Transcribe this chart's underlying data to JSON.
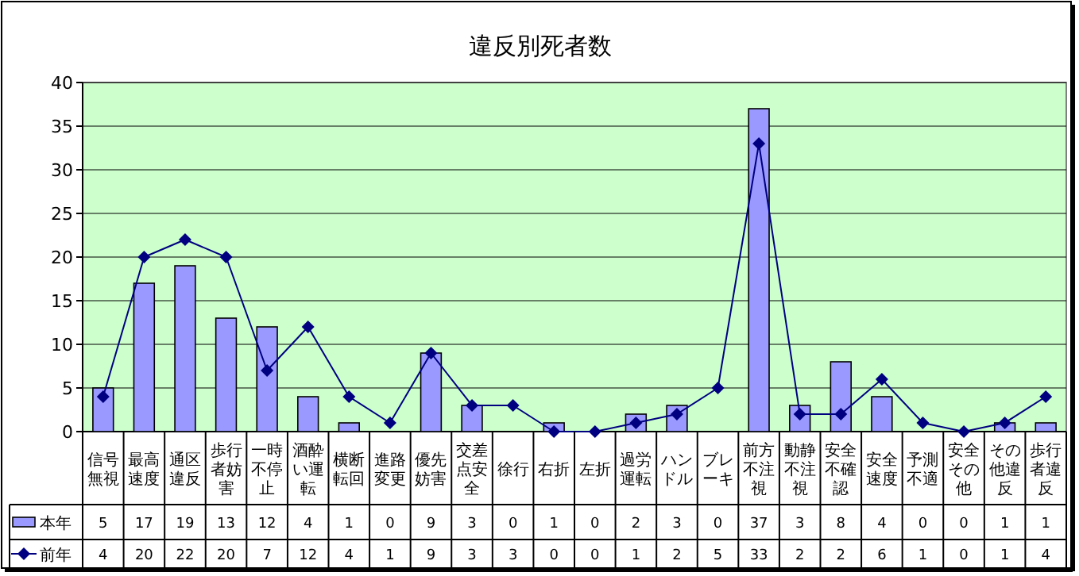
{
  "chart_data": {
    "type": "bar",
    "title": "違反別死者数",
    "categories": [
      "信号無視",
      "最高速度",
      "通区違反",
      "歩行者妨害",
      "一時不停止",
      "酒酔い運転",
      "横断転回",
      "進路変更",
      "優先妨害",
      "交差点安全",
      "徐行",
      "右折",
      "左折",
      "過労運転",
      "ハンドル",
      "ブレーキ",
      "前方不注視",
      "動静不注視",
      "安全不確認",
      "安全速度",
      "予測不適",
      "安全その他",
      "その他違反",
      "歩行者違反"
    ],
    "series": [
      {
        "name": "本年",
        "color": "#9999ff",
        "values": [
          5,
          17,
          19,
          13,
          12,
          4,
          1,
          0,
          9,
          3,
          0,
          1,
          0,
          2,
          3,
          0,
          37,
          3,
          8,
          4,
          0,
          0,
          1,
          1
        ]
      },
      {
        "name": "前年",
        "type": "line",
        "color": "#000080",
        "marker": "diamond",
        "values": [
          4,
          20,
          22,
          20,
          7,
          12,
          4,
          1,
          9,
          3,
          3,
          0,
          0,
          1,
          2,
          5,
          33,
          2,
          2,
          6,
          1,
          0,
          1,
          4
        ]
      }
    ],
    "ylim": [
      0,
      40
    ],
    "yticks": [
      0,
      5,
      10,
      15,
      20,
      25,
      30,
      35,
      40
    ],
    "grid": "y",
    "data_labels": true,
    "legend": "bottom left"
  }
}
